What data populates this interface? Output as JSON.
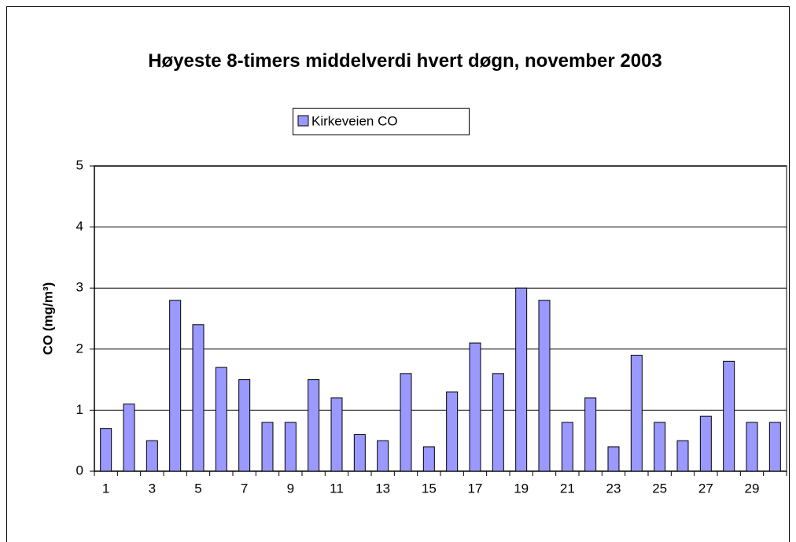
{
  "chart_data": {
    "type": "bar",
    "title": "Høyeste 8-timers middelverdi hvert døgn, november 2003",
    "y_label": "CO (mg/m³)",
    "categories": [
      "1",
      null,
      "3",
      null,
      "5",
      null,
      "7",
      null,
      "9",
      null,
      "11",
      null,
      "13",
      null,
      "15",
      null,
      "17",
      null,
      "19",
      null,
      "21",
      null,
      "23",
      null,
      "25",
      null,
      "27",
      null,
      "29",
      null
    ],
    "series": [
      {
        "name": "Kirkeveien CO",
        "color": "#9999ff",
        "values": [
          0.7,
          1.1,
          0.5,
          2.8,
          2.4,
          1.7,
          1.5,
          0.8,
          0.8,
          1.5,
          1.2,
          0.6,
          0.5,
          1.6,
          0.4,
          1.3,
          2.1,
          1.6,
          3.0,
          2.8,
          0.8,
          1.2,
          0.4,
          1.9,
          0.8,
          0.5,
          0.9,
          1.8,
          0.8,
          0.8
        ]
      }
    ],
    "ylim": [
      0,
      5
    ],
    "yticks": [
      0,
      1,
      2,
      3,
      4,
      5
    ],
    "grid": true,
    "legend": "top"
  }
}
